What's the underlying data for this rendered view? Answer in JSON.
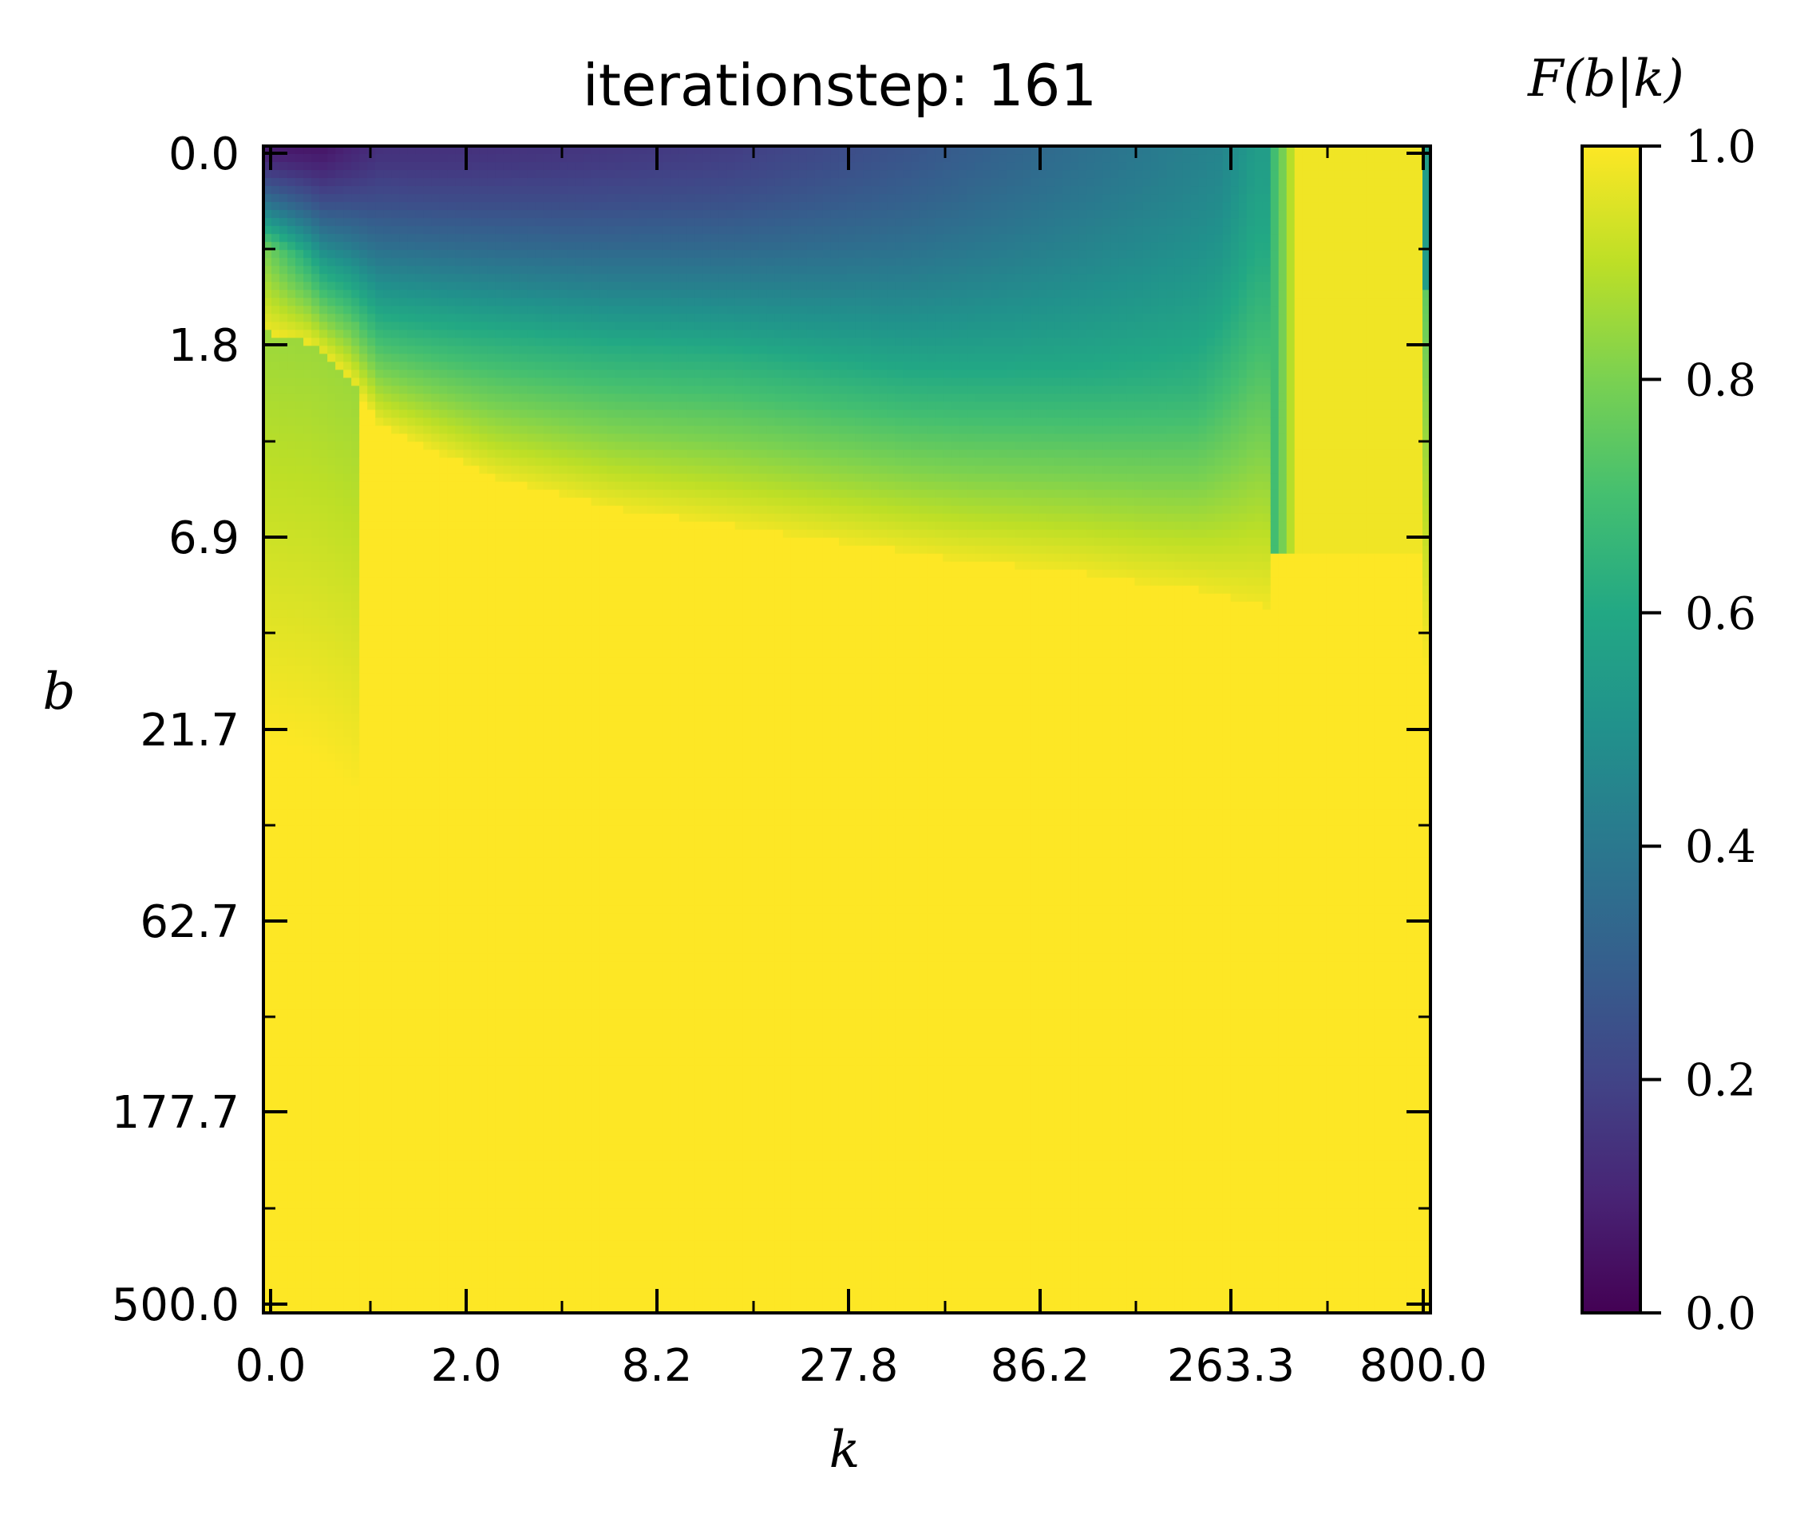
{
  "chart_data": {
    "type": "heatmap",
    "title": "iterationstep:  161",
    "xlabel": "k",
    "ylabel": "b",
    "x_tick_labels": [
      "0.0",
      "2.0",
      "8.2",
      "27.8",
      "86.2",
      "263.3",
      "800.0"
    ],
    "y_tick_labels": [
      "0.0",
      "1.8",
      "6.9",
      "21.7",
      "62.7",
      "177.7",
      "500.0"
    ],
    "colorbar": {
      "label": "F(b|k)",
      "range": [
        0.0,
        1.0
      ],
      "tick_labels": [
        "0.0",
        "0.2",
        "0.4",
        "0.6",
        "0.8",
        "1.0"
      ],
      "colormap": "viridis"
    },
    "grid": false,
    "description_of_field": {
      "top_band_low_values": "F(b|k) near 0.1 at b=0, k between 0.0 and 8.2, rising to ~0.5 toward k=263.3",
      "transition_b": "F reaches ~1.0 below b≈3 at small k and below b≈10 at large k",
      "right_edge": "F≈1.0 for k above ~400 except narrow column at k=800"
    }
  }
}
